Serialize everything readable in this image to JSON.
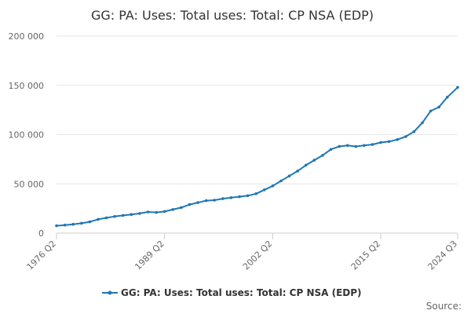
{
  "chart_data": {
    "type": "line",
    "title": "GG: PA: Uses: Total uses: Total: CP NSA (EDP)",
    "xlabel": "",
    "ylabel": "",
    "ylim": [
      0,
      200000
    ],
    "y_ticks": [
      {
        "value": 0,
        "label": "0"
      },
      {
        "value": 50000,
        "label": "50 000"
      },
      {
        "value": 100000,
        "label": "100 000"
      },
      {
        "value": 150000,
        "label": "150 000"
      },
      {
        "value": 200000,
        "label": "200 000"
      }
    ],
    "x_ticks": [
      "1976 Q2",
      "1989 Q2",
      "2002 Q2",
      "2015 Q2",
      "2024 Q3"
    ],
    "grid": true,
    "legend_position": "bottom",
    "source_label": "Source:",
    "series": [
      {
        "name": "GG: PA: Uses: Total uses: Total: CP NSA (EDP)",
        "color": "#1f77b4",
        "points": [
          [
            "1976 Q2",
            7500
          ],
          [
            "1977 Q2",
            8200
          ],
          [
            "1978 Q2",
            9000
          ],
          [
            "1979 Q2",
            10000
          ],
          [
            "1980 Q2",
            11500
          ],
          [
            "1981 Q2",
            14000
          ],
          [
            "1982 Q2",
            15500
          ],
          [
            "1983 Q2",
            17000
          ],
          [
            "1984 Q2",
            18000
          ],
          [
            "1985 Q2",
            19000
          ],
          [
            "1986 Q2",
            20000
          ],
          [
            "1987 Q2",
            21500
          ],
          [
            "1988 Q2",
            21000
          ],
          [
            "1989 Q2",
            22000
          ],
          [
            "1990 Q2",
            24000
          ],
          [
            "1991 Q2",
            26000
          ],
          [
            "1992 Q2",
            29000
          ],
          [
            "1993 Q2",
            31000
          ],
          [
            "1994 Q2",
            33000
          ],
          [
            "1995 Q2",
            33500
          ],
          [
            "1996 Q2",
            35000
          ],
          [
            "1997 Q2",
            36000
          ],
          [
            "1998 Q2",
            37000
          ],
          [
            "1999 Q2",
            38000
          ],
          [
            "2000 Q2",
            40000
          ],
          [
            "2001 Q2",
            44000
          ],
          [
            "2002 Q2",
            48000
          ],
          [
            "2003 Q2",
            53000
          ],
          [
            "2004 Q2",
            58000
          ],
          [
            "2005 Q2",
            63000
          ],
          [
            "2006 Q2",
            69000
          ],
          [
            "2007 Q2",
            74000
          ],
          [
            "2008 Q2",
            79000
          ],
          [
            "2009 Q2",
            85000
          ],
          [
            "2010 Q2",
            88000
          ],
          [
            "2011 Q2",
            89000
          ],
          [
            "2012 Q2",
            88000
          ],
          [
            "2013 Q2",
            89000
          ],
          [
            "2014 Q2",
            90000
          ],
          [
            "2015 Q2",
            92000
          ],
          [
            "2016 Q2",
            93000
          ],
          [
            "2017 Q2",
            95000
          ],
          [
            "2018 Q2",
            98000
          ],
          [
            "2019 Q2",
            103000
          ],
          [
            "2020 Q2",
            112000
          ],
          [
            "2021 Q2",
            124000
          ],
          [
            "2022 Q2",
            128000
          ],
          [
            "2023 Q2",
            138000
          ],
          [
            "2024 Q3",
            148000
          ]
        ]
      }
    ]
  }
}
